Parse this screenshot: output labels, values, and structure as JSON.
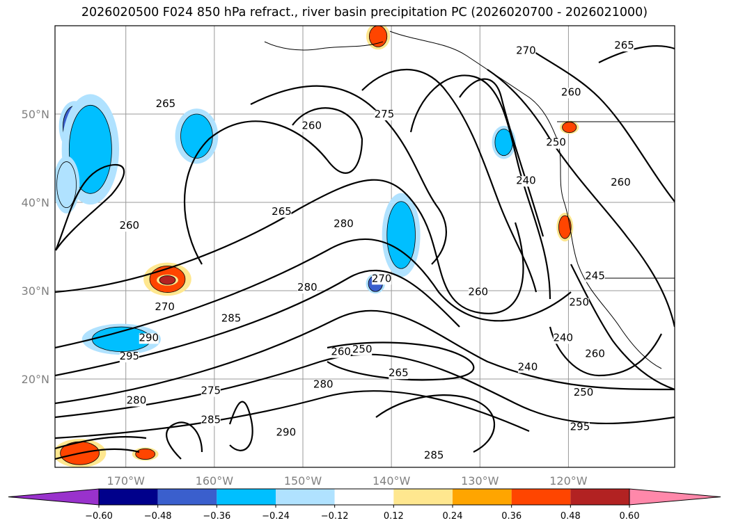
{
  "title": "2026020500 F024 850 hPa refract., river basin precipitation PC (2026020700 - 2026021000)",
  "chart_data": {
    "type": "heatmap",
    "title": "2026020500 F024 850 hPa refract., river basin precipitation PC (2026020700 - 2026021000)",
    "map_extent": {
      "lon": [
        -178,
        -108
      ],
      "lat": [
        10,
        60
      ]
    },
    "lat_ticks": [
      {
        "value": 50,
        "label": "50°N"
      },
      {
        "value": 40,
        "label": "40°N"
      },
      {
        "value": 30,
        "label": "30°N"
      },
      {
        "value": 20,
        "label": "20°N"
      }
    ],
    "lon_ticks": [
      {
        "value": -170,
        "label": "170°W"
      },
      {
        "value": -160,
        "label": "160°W"
      },
      {
        "value": -150,
        "label": "150°W"
      },
      {
        "value": -140,
        "label": "140°W"
      },
      {
        "value": -130,
        "label": "130°W"
      },
      {
        "value": -120,
        "label": "120°W"
      }
    ],
    "colorbar": {
      "levels": [
        "−0.60",
        "−0.48",
        "−0.36",
        "−0.24",
        "−0.12",
        "0.12",
        "0.24",
        "0.36",
        "0.48",
        "0.60"
      ],
      "colors": [
        "#9932cc",
        "#00008b",
        "#3a5fcd",
        "#00bfff",
        "#b0e2ff",
        "#ffffff",
        "#ffe78f",
        "#ffa500",
        "#ff4500",
        "#b22222",
        "#ff88aa"
      ],
      "extend": "both"
    },
    "contour_labels": [
      {
        "text": "265",
        "lon": -165.5,
        "lat": 50.8
      },
      {
        "text": "260",
        "lon": -149.0,
        "lat": 48.3
      },
      {
        "text": "275",
        "lon": -140.8,
        "lat": 49.6
      },
      {
        "text": "260",
        "lon": -169.6,
        "lat": 37.0
      },
      {
        "text": "265",
        "lon": -152.4,
        "lat": 38.6
      },
      {
        "text": "280",
        "lon": -145.4,
        "lat": 37.2
      },
      {
        "text": "270",
        "lon": -165.6,
        "lat": 27.8
      },
      {
        "text": "290",
        "lon": -167.4,
        "lat": 24.3
      },
      {
        "text": "295",
        "lon": -169.6,
        "lat": 22.2
      },
      {
        "text": "285",
        "lon": -158.1,
        "lat": 26.5
      },
      {
        "text": "280",
        "lon": -149.5,
        "lat": 30.0
      },
      {
        "text": "270",
        "lon": -141.1,
        "lat": 31.0
      },
      {
        "text": "260",
        "lon": -130.2,
        "lat": 29.5
      },
      {
        "text": "260",
        "lon": -145.7,
        "lat": 22.7
      },
      {
        "text": "250",
        "lon": -143.3,
        "lat": 23.0
      },
      {
        "text": "280",
        "lon": -147.7,
        "lat": 19.0
      },
      {
        "text": "265",
        "lon": -139.2,
        "lat": 20.3
      },
      {
        "text": "275",
        "lon": -160.4,
        "lat": 18.3
      },
      {
        "text": "280",
        "lon": -168.8,
        "lat": 17.2
      },
      {
        "text": "285",
        "lon": -160.4,
        "lat": 15.0
      },
      {
        "text": "290",
        "lon": -151.9,
        "lat": 13.6
      },
      {
        "text": "285",
        "lon": -135.2,
        "lat": 11.0
      },
      {
        "text": "240",
        "lon": -124.8,
        "lat": 42.1
      },
      {
        "text": "250",
        "lon": -121.4,
        "lat": 46.4
      },
      {
        "text": "260",
        "lon": -119.7,
        "lat": 52.1
      },
      {
        "text": "260",
        "lon": -114.1,
        "lat": 41.9
      },
      {
        "text": "265",
        "lon": -113.7,
        "lat": 57.4
      },
      {
        "text": "270",
        "lon": -124.8,
        "lat": 56.8
      },
      {
        "text": "245",
        "lon": -117.0,
        "lat": 31.3
      },
      {
        "text": "250",
        "lon": -118.8,
        "lat": 28.3
      },
      {
        "text": "240",
        "lon": -120.6,
        "lat": 24.3
      },
      {
        "text": "260",
        "lon": -117.0,
        "lat": 22.5
      },
      {
        "text": "240",
        "lon": -124.6,
        "lat": 21.0
      },
      {
        "text": "250",
        "lon": -118.3,
        "lat": 18.1
      },
      {
        "text": "295",
        "lon": -118.7,
        "lat": 14.2
      }
    ],
    "anomaly_patches": [
      {
        "lon": -175.8,
        "lat": 48.6,
        "value": -0.48,
        "rx": 1.3,
        "ry": 2.3
      },
      {
        "lon": -174.0,
        "lat": 46.0,
        "value": -0.36,
        "rx": 2.4,
        "ry": 5.0
      },
      {
        "lon": -162.0,
        "lat": 47.5,
        "value": -0.36,
        "rx": 1.8,
        "ry": 2.5
      },
      {
        "lon": -176.7,
        "lat": 42.0,
        "value": -0.24,
        "rx": 1.1,
        "ry": 2.6
      },
      {
        "lon": -138.9,
        "lat": 36.3,
        "value": -0.36,
        "rx": 1.6,
        "ry": 3.8
      },
      {
        "lon": -141.8,
        "lat": 30.8,
        "value": -0.48,
        "rx": 0.8,
        "ry": 0.9
      },
      {
        "lon": -170.5,
        "lat": 24.5,
        "value": -0.36,
        "rx": 3.3,
        "ry": 1.4
      },
      {
        "lon": -165.3,
        "lat": 31.3,
        "value": 0.36,
        "rx": 2.0,
        "ry": 1.5
      },
      {
        "lon": -165.3,
        "lat": 31.2,
        "value": 0.48,
        "rx": 0.9,
        "ry": 0.5
      },
      {
        "lon": -175.2,
        "lat": 11.6,
        "value": 0.36,
        "rx": 2.2,
        "ry": 1.3
      },
      {
        "lon": -167.8,
        "lat": 11.5,
        "value": 0.36,
        "rx": 1.1,
        "ry": 0.6
      },
      {
        "lon": -127.3,
        "lat": 46.8,
        "value": -0.36,
        "rx": 1.0,
        "ry": 1.5
      },
      {
        "lon": -119.9,
        "lat": 48.5,
        "value": 0.36,
        "rx": 0.8,
        "ry": 0.6
      },
      {
        "lon": -120.4,
        "lat": 37.2,
        "value": 0.36,
        "rx": 0.7,
        "ry": 1.3
      },
      {
        "lon": -141.5,
        "lat": 58.8,
        "value": 0.36,
        "rx": 1.0,
        "ry": 1.2
      }
    ]
  }
}
